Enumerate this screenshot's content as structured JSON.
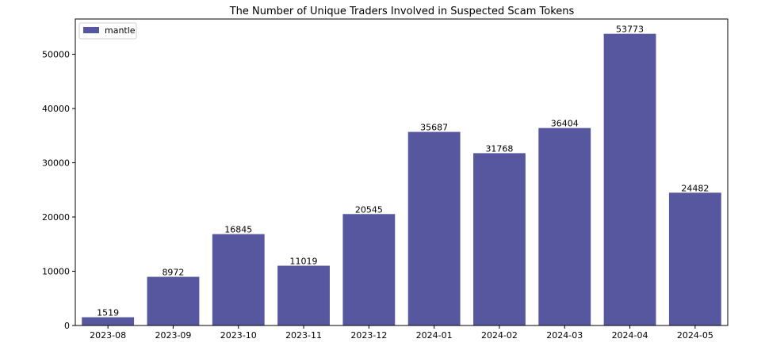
{
  "chart_data": {
    "type": "bar",
    "title": "The Number of Unique Traders Involved in Suspected Scam Tokens",
    "xlabel": "",
    "ylabel": "",
    "categories": [
      "2023-08",
      "2023-09",
      "2023-10",
      "2023-11",
      "2023-12",
      "2024-01",
      "2024-02",
      "2024-03",
      "2024-04",
      "2024-05"
    ],
    "series": [
      {
        "name": "mantle",
        "color": "#5757a0",
        "values": [
          1519,
          8972,
          16845,
          11019,
          20545,
          35687,
          31768,
          36404,
          53773,
          24482
        ]
      }
    ],
    "ylim": [
      0,
      56500
    ],
    "yticks": [
      0,
      10000,
      20000,
      30000,
      40000,
      50000
    ],
    "ytick_labels": [
      "0",
      "10000",
      "20000",
      "30000",
      "40000",
      "50000"
    ],
    "data_labels": [
      "1519",
      "8972",
      "16845",
      "11019",
      "20545",
      "35687",
      "31768",
      "36404",
      "53773",
      "24482"
    ],
    "grid": false,
    "legend": {
      "position": "top-left",
      "entries": [
        "mantle"
      ]
    }
  }
}
